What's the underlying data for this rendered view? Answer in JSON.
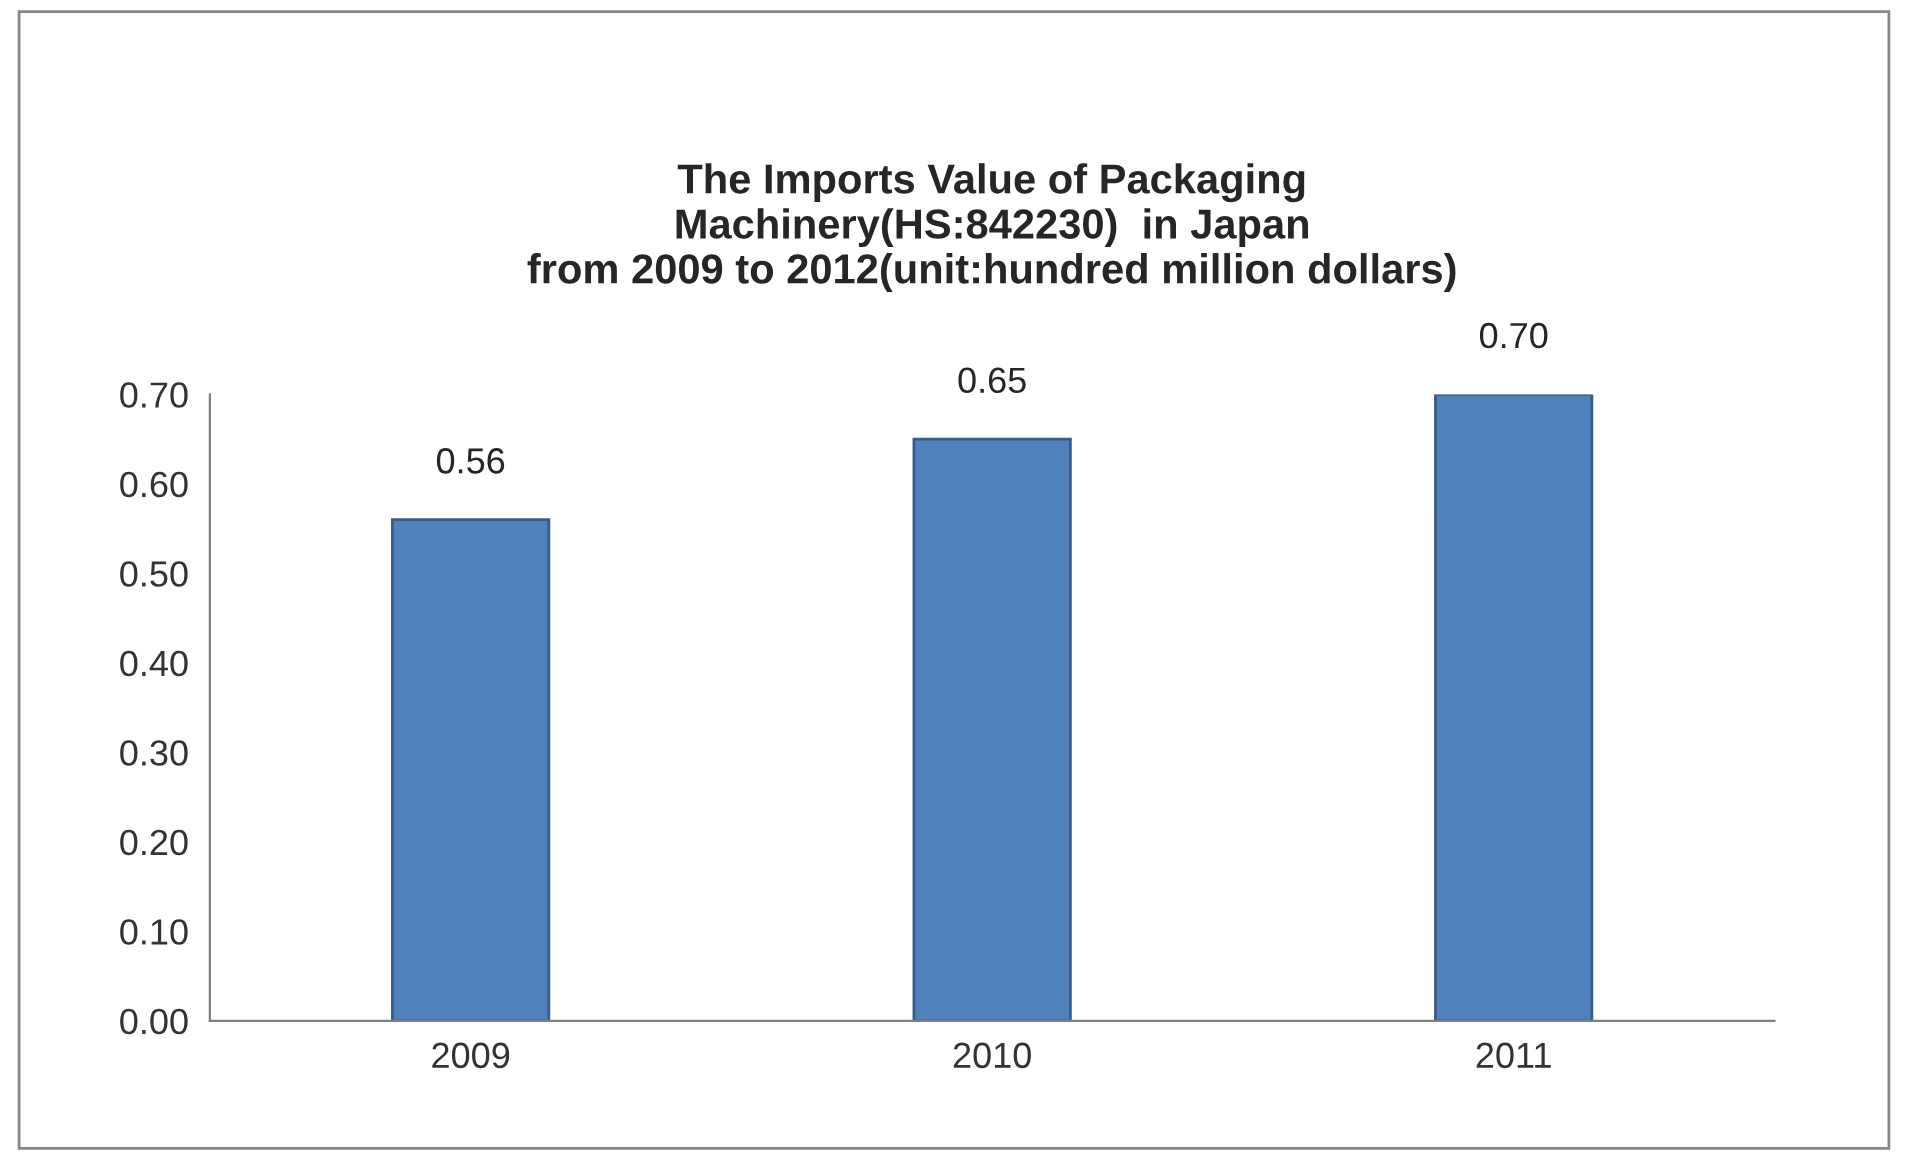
{
  "chart_data": {
    "type": "bar",
    "title": "The Imports Value of Packaging\nMachinery(HS:842230)  in Japan\nfrom 2009 to 2012(unit:hundred million dollars)",
    "categories": [
      "2009",
      "2010",
      "2011"
    ],
    "values": [
      0.56,
      0.65,
      0.7
    ],
    "color": "#4f81bd",
    "ylim": [
      0,
      0.7
    ],
    "yticks": [
      {
        "value": 0,
        "label": "0.00"
      },
      {
        "value": 0.1,
        "label": "0.10"
      },
      {
        "value": 0.2,
        "label": "0.20"
      },
      {
        "value": 0.3,
        "label": "0.30"
      },
      {
        "value": 0.4,
        "label": "0.40"
      },
      {
        "value": 0.5,
        "label": "0.50"
      },
      {
        "value": 0.6,
        "label": "0.60"
      },
      {
        "value": 0.7,
        "label": "0.70"
      }
    ],
    "value_labels": [
      "0.56",
      "0.65",
      "0.70"
    ],
    "grid": false,
    "legend": false
  }
}
